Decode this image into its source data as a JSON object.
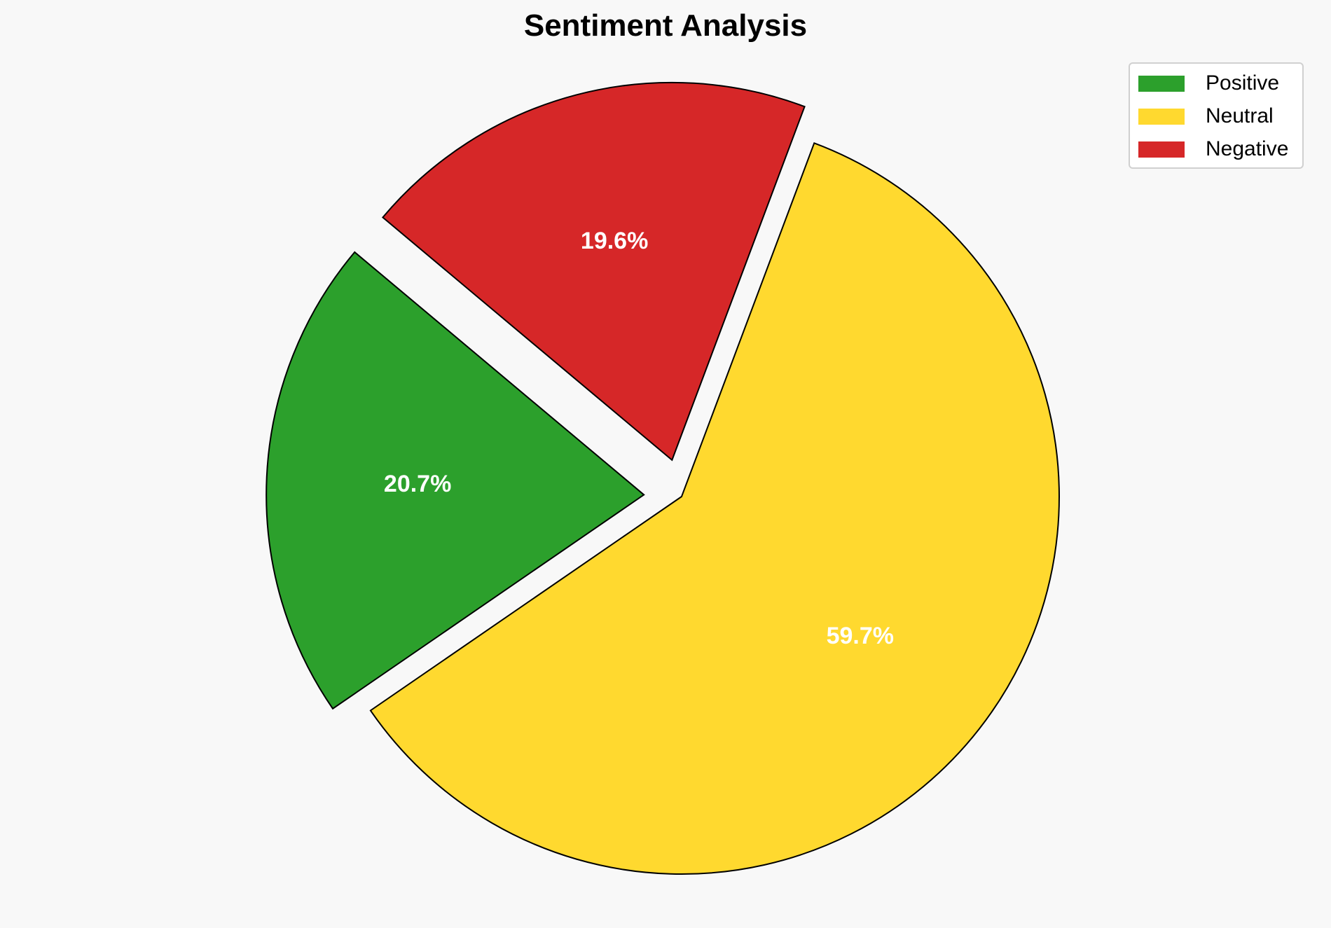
{
  "chart_data": {
    "type": "pie",
    "title": "Sentiment Analysis",
    "categories": [
      "Positive",
      "Neutral",
      "Negative"
    ],
    "values": [
      20.7,
      59.7,
      19.6
    ],
    "labels": [
      "20.7%",
      "59.7%",
      "19.6%"
    ],
    "colors": [
      "#2ca02c",
      "#ffd92f",
      "#d62728"
    ],
    "explode": [
      0.1,
      0,
      0.1
    ],
    "start_angle": 140,
    "legend_placement": "top-right"
  }
}
